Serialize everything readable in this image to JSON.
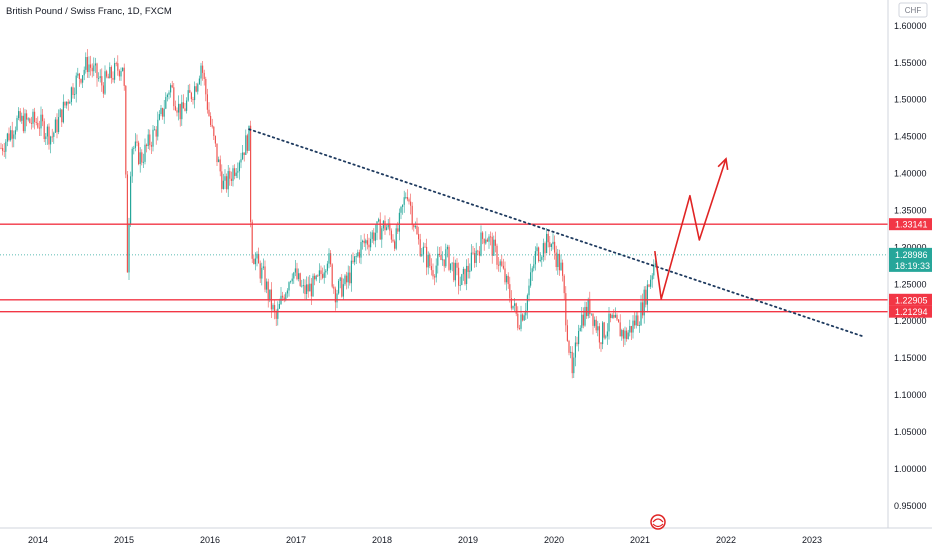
{
  "header": {
    "title": "British Pound / Swiss Franc, 1D, FXCM"
  },
  "currency_badge": "CHF",
  "colors": {
    "up": "#26a69a",
    "down": "#ef5350",
    "level": "#f23645",
    "trendline": "#1e3a5f",
    "projection": "#e02424",
    "current": "#26a69a",
    "axis_text": "#131722",
    "border": "#d1d4dc"
  },
  "chart_data": {
    "type": "candlestick",
    "title": "British Pound / Swiss Franc, 1D, FXCM",
    "x_axis": {
      "type": "date",
      "labels": [
        "2014",
        "2015",
        "2016",
        "2017",
        "2018",
        "2019",
        "2020",
        "2021",
        "2022",
        "2023"
      ]
    },
    "y_axis": {
      "range": [
        0.92,
        1.635
      ],
      "labels": [
        "0.95000",
        "1.00000",
        "1.05000",
        "1.10000",
        "1.15000",
        "1.20000",
        "1.25000",
        "1.30000",
        "1.35000",
        "1.40000",
        "1.45000",
        "1.50000",
        "1.55000",
        "1.60000"
      ]
    },
    "grid": false,
    "price_path": [
      [
        "2013-07-01",
        1.42
      ],
      [
        "2013-10-01",
        1.47
      ],
      [
        "2014-01-01",
        1.47
      ],
      [
        "2014-03-01",
        1.45
      ],
      [
        "2014-06-01",
        1.52
      ],
      [
        "2014-08-01",
        1.55
      ],
      [
        "2014-10-01",
        1.52
      ],
      [
        "2014-12-31",
        1.55
      ],
      [
        "2015-01-15",
        1.27
      ],
      [
        "2015-02-01",
        1.44
      ],
      [
        "2015-03-15",
        1.42
      ],
      [
        "2015-05-01",
        1.45
      ],
      [
        "2015-06-01",
        1.47
      ],
      [
        "2015-07-15",
        1.52
      ],
      [
        "2015-09-01",
        1.48
      ],
      [
        "2015-11-01",
        1.52
      ],
      [
        "2015-11-25",
        1.55
      ],
      [
        "2016-01-01",
        1.47
      ],
      [
        "2016-02-01",
        1.42
      ],
      [
        "2016-03-01",
        1.38
      ],
      [
        "2016-04-01",
        1.4
      ],
      [
        "2016-06-15",
        1.45
      ],
      [
        "2016-06-24",
        1.3
      ],
      [
        "2016-07-15",
        1.28
      ],
      [
        "2016-08-15",
        1.26
      ],
      [
        "2016-10-07",
        1.2
      ],
      [
        "2016-11-01",
        1.23
      ],
      [
        "2016-12-15",
        1.27
      ],
      [
        "2017-02-01",
        1.24
      ],
      [
        "2017-04-01",
        1.25
      ],
      [
        "2017-05-15",
        1.29
      ],
      [
        "2017-06-15",
        1.24
      ],
      [
        "2017-08-01",
        1.25
      ],
      [
        "2017-10-01",
        1.3
      ],
      [
        "2017-12-01",
        1.32
      ],
      [
        "2018-01-15",
        1.33
      ],
      [
        "2018-03-01",
        1.31
      ],
      [
        "2018-04-17",
        1.38
      ],
      [
        "2018-06-01",
        1.31
      ],
      [
        "2018-08-01",
        1.27
      ],
      [
        "2018-10-01",
        1.29
      ],
      [
        "2018-12-01",
        1.25
      ],
      [
        "2019-01-15",
        1.28
      ],
      [
        "2019-03-15",
        1.32
      ],
      [
        "2019-05-15",
        1.28
      ],
      [
        "2019-08-01",
        1.2
      ],
      [
        "2019-09-01",
        1.22
      ],
      [
        "2019-10-15",
        1.29
      ],
      [
        "2019-12-15",
        1.31
      ],
      [
        "2020-02-01",
        1.27
      ],
      [
        "2020-03-19",
        1.12
      ],
      [
        "2020-04-15",
        1.2
      ],
      [
        "2020-06-01",
        1.22
      ],
      [
        "2020-07-15",
        1.18
      ],
      [
        "2020-09-01",
        1.2
      ],
      [
        "2020-11-01",
        1.18
      ],
      [
        "2021-01-01",
        1.21
      ],
      [
        "2021-02-15",
        1.26
      ],
      [
        "2021-03-10",
        1.29
      ]
    ],
    "horizontal_levels": [
      {
        "value": 1.33141,
        "label": "1.33141"
      },
      {
        "value": 1.22905,
        "label": "1.22905"
      },
      {
        "value": 1.21294,
        "label": "1.21294"
      }
    ],
    "current_price": {
      "value": 1.28986,
      "label": "1.28986",
      "countdown": "18:19:33"
    },
    "trendline": {
      "start": [
        "2016-06-15",
        1.46
      ],
      "end": [
        "2023-08-01",
        1.18
      ]
    },
    "projection_path": [
      [
        "2021-03-05",
        1.295
      ],
      [
        "2021-04-01",
        1.23
      ],
      [
        "2021-08-01",
        1.37
      ],
      [
        "2021-09-10",
        1.31
      ],
      [
        "2022-01-01",
        1.42
      ]
    ]
  }
}
